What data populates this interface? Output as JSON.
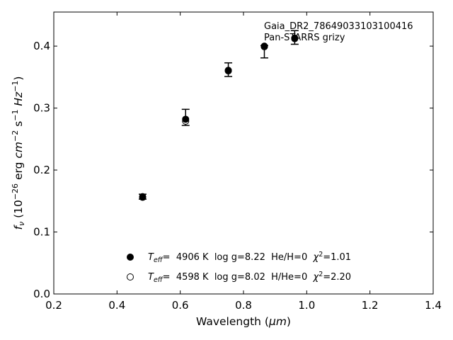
{
  "chart_data": {
    "type": "scatter",
    "annotations": [
      "Gaia_DR2_78649033103100416",
      "Pan-STARRS grizy"
    ],
    "xlabel": {
      "main": "Wavelength (",
      "unit": "μm",
      "close": ")"
    },
    "ylabel": {
      "f": "f",
      "nu": "ν",
      "a": " (10",
      "e1": "−26",
      "b": " erg ",
      "cm": "cm",
      "e2": "−2",
      "s": " s",
      "e3": "−1",
      "hz": " Hz",
      "e4": "−1",
      "c": ")"
    },
    "xlim": [
      0.2,
      1.4
    ],
    "ylim": [
      0.0,
      0.455
    ],
    "xticks": [
      0.2,
      0.4,
      0.6,
      0.8,
      1.0,
      1.2,
      1.4
    ],
    "xtick_labels": [
      "0.2",
      "0.4",
      "0.6",
      "0.8",
      "1.0",
      "1.2",
      "1.4"
    ],
    "yticks": [
      0.0,
      0.1,
      0.2,
      0.3,
      0.4
    ],
    "ytick_labels": [
      "0.0",
      "0.1",
      "0.2",
      "0.3",
      "0.4"
    ],
    "grid": false,
    "observed": {
      "x": [
        0.481,
        0.617,
        0.752,
        0.866,
        0.962
      ],
      "y": [
        0.157,
        0.285,
        0.362,
        0.391,
        0.414
      ],
      "yerr": [
        0.004,
        0.013,
        0.011,
        0.01,
        0.011
      ]
    },
    "series": [
      {
        "marker": "filled",
        "x": [
          0.481,
          0.617,
          0.752,
          0.866,
          0.962
        ],
        "y": [
          0.157,
          0.282,
          0.361,
          0.4,
          0.413
        ]
      },
      {
        "marker": "open",
        "x": [
          0.481,
          0.617,
          0.752,
          0.866,
          0.962
        ],
        "y": [
          0.156,
          0.279,
          0.36,
          0.399,
          0.412
        ]
      }
    ],
    "legend": {
      "placement": "lower-center",
      "entries": [
        {
          "marker": "filled",
          "T": "T",
          "sub": "eff",
          "rest": "=  4906 K  log g=8.22  He/H=0  ",
          "chi": "χ",
          "sup": "2",
          "val": "=1.01"
        },
        {
          "marker": "open",
          "T": "T",
          "sub": "eff",
          "rest": "=  4598 K  log g=8.02  H/He=0  ",
          "chi": "χ",
          "sup": "2",
          "val": "=2.20"
        }
      ]
    },
    "colors": {
      "marker": "#000000",
      "axes": "#000000",
      "background": "#ffffff"
    }
  }
}
